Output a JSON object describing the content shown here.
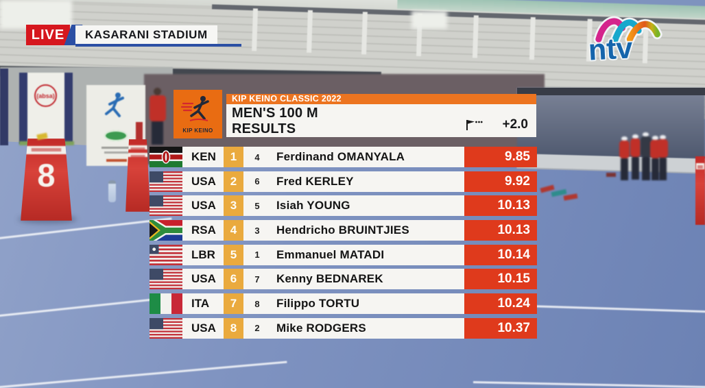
{
  "broadcast": {
    "live": "LIVE",
    "location": "KASARANI STADIUM",
    "channel": "ntv"
  },
  "scoreboard": {
    "title": "KIP KEINO CLASSIC 2022",
    "event": "MEN'S 100 M",
    "subtitle": "RESULTS",
    "wind": "+2.0",
    "logo_caption": "KIP KEINO",
    "results": [
      {
        "flag": "KEN",
        "country": "KEN",
        "rank": "1",
        "lane": "4",
        "name": "Ferdinand OMANYALA",
        "time": "9.85"
      },
      {
        "flag": "USA",
        "country": "USA",
        "rank": "2",
        "lane": "6",
        "name": "Fred KERLEY",
        "time": "9.92"
      },
      {
        "flag": "USA",
        "country": "USA",
        "rank": "3",
        "lane": "5",
        "name": "Isiah YOUNG",
        "time": "10.13"
      },
      {
        "flag": "RSA",
        "country": "RSA",
        "rank": "4",
        "lane": "3",
        "name": "Hendricho BRUINTJIES",
        "time": "10.13"
      },
      {
        "flag": "LBR",
        "country": "LBR",
        "rank": "5",
        "lane": "1",
        "name": "Emmanuel MATADI",
        "time": "10.14"
      },
      {
        "flag": "USA",
        "country": "USA",
        "rank": "6",
        "lane": "7",
        "name": "Kenny BEDNAREK",
        "time": "10.15"
      },
      {
        "flag": "ITA",
        "country": "ITA",
        "rank": "7",
        "lane": "8",
        "name": "Filippo TORTU",
        "time": "10.24"
      },
      {
        "flag": "USA",
        "country": "USA",
        "rank": "8",
        "lane": "2",
        "name": "Mike RODGERS",
        "time": "10.37"
      }
    ]
  },
  "scene": {
    "lane_marker_number": "8",
    "absa_board_label": "(absa)"
  },
  "colors": {
    "overlay_orange": "#EC7420",
    "rank_amber": "#EAAA3E",
    "time_red": "#DF3A1C",
    "badge_red": "#D6171E",
    "badge_blue": "#2B4FA4",
    "ntv_blue": "#1565AC",
    "track_blue": "#7E92C0"
  }
}
